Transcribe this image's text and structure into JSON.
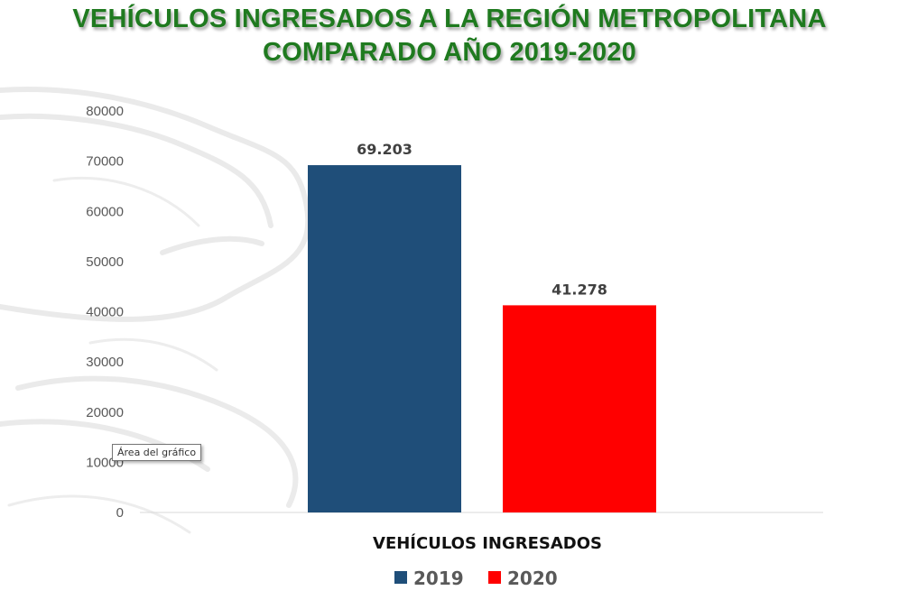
{
  "title": {
    "line1": "VEHÍCULOS INGRESADOS A LA REGIÓN METROPOLITANA",
    "line2": "COMPARADO AÑO 2019-2020",
    "color": "#1f7a1f"
  },
  "tooltip": "Área del gráfico",
  "chart_data": {
    "type": "bar",
    "categories": [
      "VEHÍCULOS INGRESADOS"
    ],
    "xlabel": "VEHÍCULOS INGRESADOS",
    "ylabel": "",
    "ylim": [
      0,
      80000
    ],
    "yticks": [
      "0",
      "10000",
      "20000",
      "30000",
      "40000",
      "50000",
      "60000",
      "70000",
      "80000"
    ],
    "series": [
      {
        "name": "2019",
        "values": [
          69203
        ],
        "label": "69.203",
        "color": "#1f4e79"
      },
      {
        "name": "2020",
        "values": [
          41278
        ],
        "label": "41.278",
        "color": "#ff0000"
      }
    ],
    "legend": "bottom",
    "grid": false
  }
}
